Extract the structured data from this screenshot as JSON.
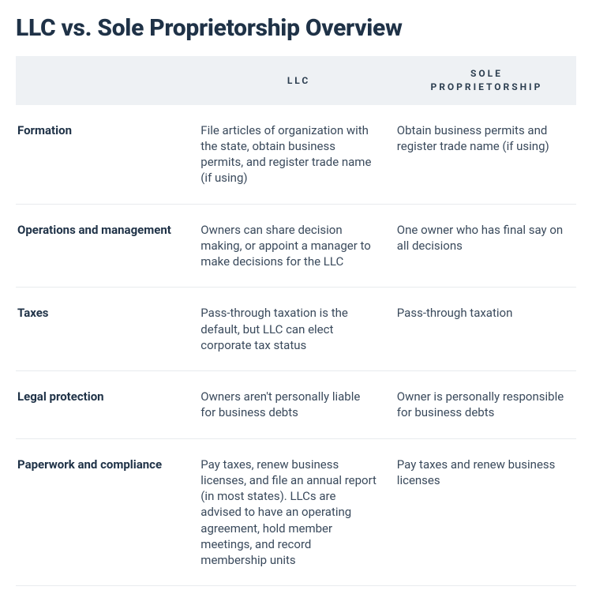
{
  "title": "LLC vs. Sole Proprietorship Overview",
  "columns": [
    "",
    "LLC",
    "SOLE PROPRIETORSHIP"
  ],
  "rows": [
    {
      "label": "Formation",
      "llc": "File articles of organization with the state, obtain business permits, and register trade name (if using)",
      "sp": "Obtain business permits and register trade name (if using)"
    },
    {
      "label": "Operations and management",
      "llc": "Owners can share decision making, or appoint a manager to make decisions for the LLC",
      "sp": "One owner who has final say on all decisions"
    },
    {
      "label": "Taxes",
      "llc": "Pass-through taxation is the default, but LLC can elect corporate tax status",
      "sp": "Pass-through taxation"
    },
    {
      "label": "Legal protection",
      "llc": "Owners aren't personally liable for business debts",
      "sp": "Owner is personally responsible for business debts"
    },
    {
      "label": "Paperwork and compliance",
      "llc": "Pay taxes, renew business licenses, and file an annual report (in most states). LLCs are advised to have an operating agreement, hold member meetings, and record membership units",
      "sp": "Pay taxes and renew business licenses"
    }
  ],
  "colors": {
    "heading": "#1f3247",
    "text": "#3a4a5c",
    "header_bg": "#eef1f4",
    "border": "#e8ebee",
    "background": "#ffffff"
  },
  "typography": {
    "title_fontsize": 30,
    "title_weight": 800,
    "header_fontsize": 12,
    "header_letterspacing": 3,
    "body_fontsize": 15,
    "body_lineheight": 1.35,
    "label_weight": 700
  },
  "layout": {
    "col_widths_pct": [
      33,
      35,
      32
    ],
    "row_padding_v": 22
  }
}
